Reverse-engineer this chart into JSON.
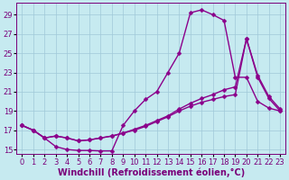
{
  "xlabel": "Windchill (Refroidissement éolien,°C)",
  "xlim": [
    -0.5,
    23.5
  ],
  "ylim": [
    14.5,
    30.2
  ],
  "xticks": [
    0,
    1,
    2,
    3,
    4,
    5,
    6,
    7,
    8,
    9,
    10,
    11,
    12,
    13,
    14,
    15,
    16,
    17,
    18,
    19,
    20,
    21,
    22,
    23
  ],
  "yticks": [
    15,
    17,
    19,
    21,
    23,
    25,
    27,
    29
  ],
  "bg_color": "#c6eaf0",
  "grid_color": "#a0c8d8",
  "line_color": "#8b008b",
  "curve1_x": [
    0,
    1,
    2,
    3,
    4,
    5,
    6,
    7,
    8,
    9,
    10,
    11,
    12,
    13,
    14,
    15,
    16,
    17,
    18,
    19,
    20,
    21,
    22,
    23
  ],
  "curve1_y": [
    17.5,
    17.0,
    16.2,
    15.3,
    15.0,
    14.9,
    14.9,
    14.85,
    14.85,
    17.5,
    19.0,
    20.2,
    21.0,
    23.0,
    25.0,
    29.2,
    29.5,
    29.0,
    28.4,
    22.5,
    22.5,
    20.0,
    19.3,
    19.0
  ],
  "curve2_x": [
    0,
    1,
    2,
    3,
    4,
    5,
    6,
    7,
    8,
    9,
    10,
    11,
    12,
    13,
    14,
    15,
    16,
    17,
    18,
    19,
    20,
    21,
    22,
    23
  ],
  "curve2_y": [
    17.5,
    17.0,
    16.2,
    16.4,
    16.2,
    15.9,
    16.0,
    16.2,
    16.4,
    16.7,
    17.0,
    17.4,
    17.9,
    18.4,
    19.0,
    19.5,
    19.9,
    20.2,
    20.5,
    20.7,
    26.5,
    22.5,
    20.3,
    19.0
  ],
  "curve3_x": [
    0,
    1,
    2,
    3,
    4,
    5,
    6,
    7,
    8,
    9,
    10,
    11,
    12,
    13,
    14,
    15,
    16,
    17,
    18,
    19,
    20,
    21,
    22,
    23
  ],
  "curve3_y": [
    17.5,
    17.0,
    16.2,
    16.4,
    16.2,
    15.9,
    16.0,
    16.2,
    16.4,
    16.7,
    17.1,
    17.5,
    18.0,
    18.5,
    19.2,
    19.8,
    20.3,
    20.7,
    21.2,
    21.5,
    26.5,
    22.7,
    20.5,
    19.2
  ],
  "marker": "D",
  "markersize": 2.5,
  "linewidth": 1.0,
  "fontsize_label": 7,
  "fontsize_tick": 6
}
